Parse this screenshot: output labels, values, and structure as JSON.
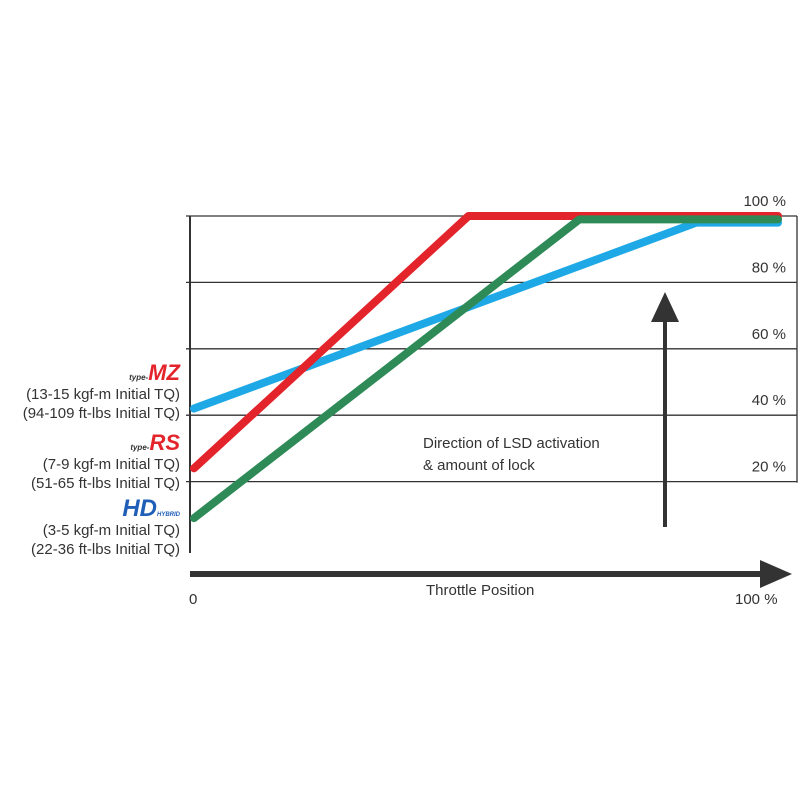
{
  "chart_data": {
    "type": "line",
    "xlabel": "Throttle Position",
    "x_tick_labels": [
      "0",
      "100 %"
    ],
    "xlim": [
      0,
      100
    ],
    "ylim": [
      0,
      100
    ],
    "y_tick_labels": [
      "20 %",
      "40 %",
      "60 %",
      "80 %",
      "100 %"
    ],
    "y_ticks": [
      20,
      40,
      60,
      80,
      100
    ],
    "grid": true,
    "annotation": [
      "Direction of LSD activation",
      "& amount of lock"
    ],
    "series": [
      {
        "name": "type-MZ",
        "color": "#1ea9e6",
        "x": [
          0,
          86,
          100
        ],
        "y": [
          42,
          98,
          98
        ]
      },
      {
        "name": "type-RS",
        "color": "#e3242b",
        "x": [
          0,
          47,
          100
        ],
        "y": [
          24,
          100,
          100
        ]
      },
      {
        "name": "HYBRID HD",
        "color": "#2e8b57",
        "x": [
          0,
          66,
          100
        ],
        "y": [
          9,
          99,
          99
        ]
      }
    ]
  },
  "legend": [
    {
      "logo_prefix": "type-",
      "logo": "MZ",
      "color": "#e3242b",
      "line1": "(13-15 kgf-m Initial TQ)",
      "line2": "(94-109 ft-lbs Initial TQ)"
    },
    {
      "logo_prefix": "type-",
      "logo": "RS",
      "color": "#e3242b",
      "line1": "(7-9 kgf-m Initial TQ)",
      "line2": "(51-65 ft-lbs Initial TQ)"
    },
    {
      "logo_prefix": "HYBRID",
      "logo": "HD",
      "color": "#1f5fb8",
      "line1": "(3-5 kgf-m Initial TQ)",
      "line2": "(22-36 ft-lbs Initial TQ)"
    }
  ]
}
